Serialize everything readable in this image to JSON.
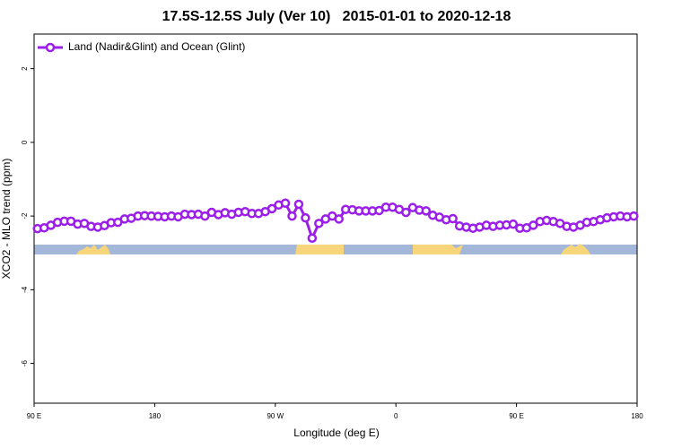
{
  "chart_data": {
    "type": "line",
    "title": "17.5S-12.5S July (Ver 10)   2015-01-01 to 2020-12-18",
    "xlabel": "Longitude (deg E)",
    "ylabel": "XCO2 - MLO trend (ppm)",
    "xlim": [
      90,
      540
    ],
    "ylim": [
      -7.08,
      2.94
    ],
    "xticks": [
      {
        "value": 90,
        "label": "90 E"
      },
      {
        "value": 180,
        "label": "180"
      },
      {
        "value": 270,
        "label": "90 W"
      },
      {
        "value": 360,
        "label": "0"
      },
      {
        "value": 450,
        "label": "90 E"
      },
      {
        "value": 540,
        "label": "180"
      }
    ],
    "yticks": [
      2,
      0,
      -2,
      -4,
      -6
    ],
    "legend": "top-left",
    "x": [
      92.5,
      97.5,
      102.5,
      107.5,
      112.5,
      117.5,
      122.5,
      127.5,
      132.5,
      137.5,
      142.5,
      147.5,
      152.5,
      157.5,
      162.5,
      167.5,
      172.5,
      177.5,
      182.5,
      187.5,
      192.5,
      197.5,
      202.5,
      207.5,
      212.5,
      217.5,
      222.5,
      227.5,
      232.5,
      237.5,
      242.5,
      247.5,
      252.5,
      257.5,
      262.5,
      267.5,
      272.5,
      277.5,
      282.5,
      287.5,
      292.5,
      297.5,
      302.5,
      307.5,
      312.5,
      317.5,
      322.5,
      327.5,
      332.5,
      337.5,
      342.5,
      347.5,
      352.5,
      357.5,
      362.5,
      367.5,
      372.5,
      377.5,
      382.5,
      387.5,
      392.5,
      397.5,
      402.5,
      407.5,
      412.5,
      417.5,
      422.5,
      427.5,
      432.5,
      437.5,
      442.5,
      447.5,
      452.5,
      457.5,
      462.5,
      467.5,
      472.5,
      477.5,
      482.5,
      487.5,
      492.5,
      497.5,
      502.5,
      507.5,
      512.5,
      517.5,
      522.5,
      527.5,
      532.5,
      537.5
    ],
    "series": [
      {
        "name": "Land (Nadir&Glint) and Ocean (Glint)",
        "color": "#9b1fe8",
        "values": [
          -2.34,
          -2.32,
          -2.25,
          -2.17,
          -2.14,
          -2.14,
          -2.22,
          -2.2,
          -2.28,
          -2.3,
          -2.26,
          -2.18,
          -2.17,
          -2.08,
          -2.06,
          -2.0,
          -1.99,
          -2.0,
          -2.01,
          -2.02,
          -2.0,
          -2.02,
          -1.95,
          -1.96,
          -1.95,
          -2.0,
          -1.9,
          -1.96,
          -1.91,
          -1.95,
          -1.9,
          -1.88,
          -1.93,
          -1.93,
          -1.88,
          -1.8,
          -1.7,
          -1.65,
          -2.0,
          -1.68,
          -2.05,
          -2.6,
          -2.2,
          -2.08,
          -2.0,
          -2.08,
          -1.82,
          -1.83,
          -1.86,
          -1.86,
          -1.86,
          -1.85,
          -1.76,
          -1.76,
          -1.82,
          -1.9,
          -1.77,
          -1.84,
          -1.86,
          -1.98,
          -2.03,
          -2.1,
          -2.07,
          -2.27,
          -2.3,
          -2.33,
          -2.3,
          -2.25,
          -2.28,
          -2.25,
          -2.24,
          -2.22,
          -2.33,
          -2.32,
          -2.25,
          -2.15,
          -2.12,
          -2.15,
          -2.2,
          -2.28,
          -2.3,
          -2.25,
          -2.17,
          -2.15,
          -2.1,
          -2.05,
          -2.02,
          -2.0,
          -2.02,
          -2.0
        ]
      }
    ]
  }
}
